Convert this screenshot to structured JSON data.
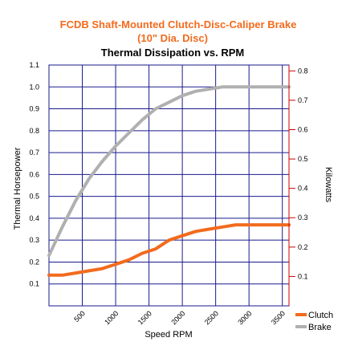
{
  "chart_data": {
    "type": "line",
    "title": "FCDB Shaft-Mounted Clutch-Disc-Caliper Brake",
    "subtitle": "(10\" Dia. Disc)",
    "chart_title": "Thermal Dissipation vs. RPM",
    "xlabel": "Speed RPM",
    "ylabel_left": "Thermal Horsepower",
    "ylabel_right": "Kilowatts",
    "xlim": [
      0,
      3600
    ],
    "ylim_left": [
      0,
      1.1
    ],
    "ylim_right": [
      0,
      0.82
    ],
    "x_ticks": [
      "500",
      "1000",
      "1500",
      "2000",
      "2500",
      "3000",
      "3500"
    ],
    "y_ticks_left": [
      "0.1",
      "0.2",
      "0.3",
      "0.4",
      "0.5",
      "0.6",
      "0.7",
      "0.8",
      "0.9",
      "1.0",
      "1.1"
    ],
    "y_ticks_right": [
      "0.1",
      "0.2",
      "0.3",
      "0.4",
      "0.5",
      "0.6",
      "0.7",
      "0.8"
    ],
    "grid": true,
    "legend_position": "bottom-right",
    "colors": {
      "clutch": "#f26b1d",
      "brake": "#b0b0b0",
      "grid": "#1a1a8c",
      "right_ticks": "#cc0000",
      "title": "#f26b1d"
    },
    "series": [
      {
        "name": "Clutch",
        "x": [
          0,
          200,
          400,
          600,
          800,
          1000,
          1200,
          1400,
          1600,
          1800,
          2000,
          2200,
          2400,
          2600,
          2800,
          3000,
          3200,
          3400,
          3600
        ],
        "values": [
          0.14,
          0.14,
          0.15,
          0.16,
          0.17,
          0.19,
          0.21,
          0.24,
          0.26,
          0.3,
          0.32,
          0.34,
          0.35,
          0.36,
          0.37,
          0.37,
          0.37,
          0.37,
          0.37
        ]
      },
      {
        "name": "Brake",
        "x": [
          0,
          200,
          400,
          600,
          800,
          1000,
          1200,
          1400,
          1600,
          1800,
          2000,
          2200,
          2400,
          2600,
          2800,
          3000,
          3200,
          3400,
          3600
        ],
        "values": [
          0.23,
          0.36,
          0.48,
          0.58,
          0.66,
          0.73,
          0.79,
          0.85,
          0.9,
          0.93,
          0.96,
          0.98,
          0.99,
          1.0,
          1.0,
          1.0,
          1.0,
          1.0,
          1.0
        ]
      }
    ]
  }
}
